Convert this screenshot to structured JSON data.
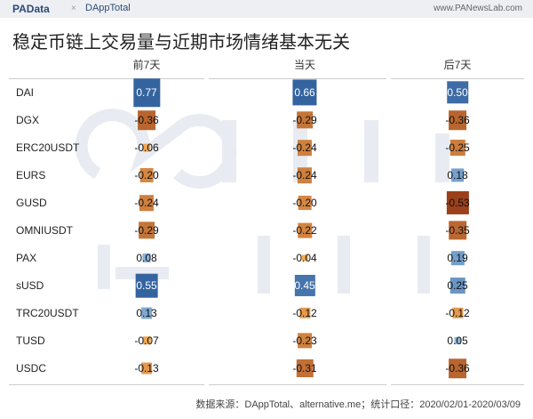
{
  "header": {
    "brand1": "PAData",
    "separator": "×",
    "brand2": "DAppTotal",
    "site": "www.PANewsLab.com"
  },
  "title": "稳定币链上交易量与近期市场情绪基本无关",
  "watermarks": [
    "PAData",
    "DAppTotal"
  ],
  "chart_data": {
    "type": "heatmap",
    "title": "稳定币链上交易量与近期市场情绪基本无关",
    "columns": [
      "前7天",
      "当天",
      "后7天"
    ],
    "rows": [
      "DAI",
      "DGX",
      "ERC20USDT",
      "EURS",
      "GUSD",
      "OMNIUSDT",
      "PAX",
      "sUSD",
      "TRC20USDT",
      "TUSD",
      "USDC"
    ],
    "values": [
      [
        "0.77",
        "0.66",
        "0.50"
      ],
      [
        "-0.36",
        "-0.29",
        "-0.36"
      ],
      [
        "-0.06",
        "-0.24",
        "-0.25"
      ],
      [
        "-0.20",
        "-0.24",
        "0.18"
      ],
      [
        "-0.24",
        "-0.20",
        "-0.53"
      ],
      [
        "-0.29",
        "-0.22",
        "-0.35"
      ],
      [
        "0.08",
        "-0.04",
        "0.19"
      ],
      [
        "0.55",
        "0.45",
        "0.25"
      ],
      [
        "0.13",
        "-0.12",
        "-0.12"
      ],
      [
        "-0.07",
        "-0.23",
        "0.05"
      ],
      [
        "-0.13",
        "-0.31",
        "-0.36"
      ]
    ],
    "color_positive": "#3b6ea5",
    "color_negative": "#e0702a"
  },
  "footer": "数据来源：DAppTotal、alternative.me；统计口径：2020/02/01-2020/03/09"
}
